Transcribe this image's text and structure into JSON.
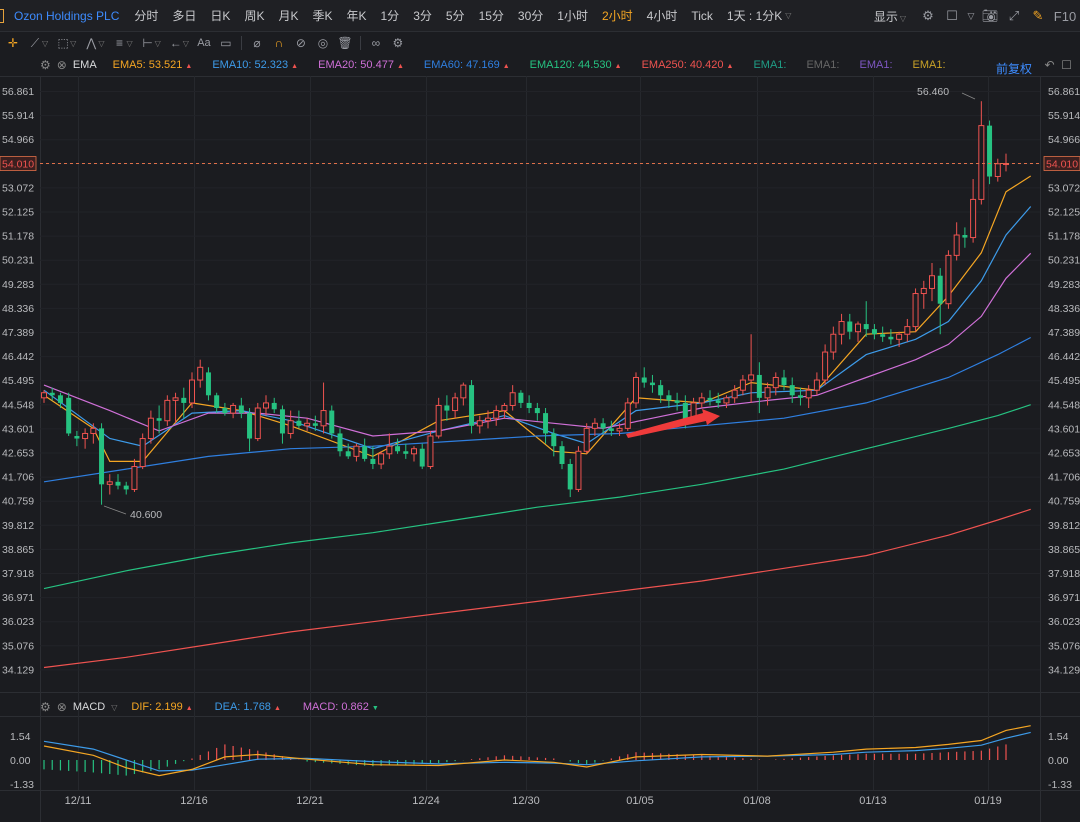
{
  "topbar": {
    "symbol": "Ozon Holdings PLC",
    "periods": [
      "分时",
      "多日",
      "日K",
      "周K",
      "月K",
      "季K",
      "年K",
      "1分",
      "3分",
      "5分",
      "15分",
      "30分",
      "1小时",
      "2小时",
      "4小时",
      "Tick",
      "1天 : 1分K"
    ],
    "active_period": "2小时",
    "show_label": "显示",
    "f10_label": "F10"
  },
  "main_legend": {
    "indicator": "EMA",
    "items": [
      {
        "label": "EMA5: 53.521",
        "color": "#f5a623",
        "dir": "up"
      },
      {
        "label": "EMA10: 52.323",
        "color": "#3d9be9",
        "dir": "up"
      },
      {
        "label": "EMA20: 50.477",
        "color": "#d070d8",
        "dir": "up"
      },
      {
        "label": "EMA60: 47.169",
        "color": "#2f7fe0",
        "dir": "up"
      },
      {
        "label": "EMA120: 44.530",
        "color": "#26c281",
        "dir": "up"
      },
      {
        "label": "EMA250: 40.420",
        "color": "#ef5350",
        "dir": "up"
      },
      {
        "label": "EMA1:",
        "color": "#1f9e86",
        "dir": ""
      },
      {
        "label": "EMA1:",
        "color": "#666666",
        "dir": ""
      },
      {
        "label": "EMA1:",
        "color": "#7e57c2",
        "dir": ""
      },
      {
        "label": "EMA1:",
        "color": "#c9a227",
        "dir": ""
      }
    ],
    "adjust_label": "前复权"
  },
  "macd_legend": {
    "indicator": "MACD",
    "items": [
      {
        "label": "DIF: 2.199",
        "color": "#f5a623",
        "dir": "up"
      },
      {
        "label": "DEA: 1.768",
        "color": "#3d9be9",
        "dir": "up"
      },
      {
        "label": "MACD: 0.862",
        "color": "#d070d8",
        "dir": "down"
      }
    ]
  },
  "chart_data": {
    "type": "candlestick",
    "price_axis_ticks": [
      "56.861",
      "55.914",
      "54.966",
      "54.019",
      "53.072",
      "52.125",
      "51.178",
      "50.231",
      "49.283",
      "48.336",
      "47.389",
      "46.442",
      "45.495",
      "44.548",
      "43.601",
      "42.653",
      "41.706",
      "40.759",
      "39.812",
      "38.865",
      "37.918",
      "36.971",
      "36.023",
      "35.076",
      "34.129"
    ],
    "current_price": "54.010",
    "high_label": "56.460",
    "low_label": "40.600",
    "macd_axis_ticks": [
      "1.54",
      "0.00",
      "-1.33"
    ],
    "x_tick_labels": [
      "12/11",
      "12/16",
      "12/21",
      "12/24",
      "12/30",
      "01/05",
      "01/08",
      "01/13",
      "01/19"
    ],
    "candles": [
      [
        44.8,
        45.1,
        44.6,
        45.0
      ],
      [
        45.0,
        45.2,
        44.7,
        44.9
      ],
      [
        44.9,
        45.0,
        44.4,
        44.6
      ],
      [
        44.8,
        45.0,
        43.3,
        43.4
      ],
      [
        43.3,
        43.5,
        42.9,
        43.2
      ],
      [
        43.2,
        43.6,
        42.8,
        43.4
      ],
      [
        43.4,
        43.8,
        43.0,
        43.6
      ],
      [
        43.6,
        43.8,
        40.6,
        41.4
      ],
      [
        41.4,
        41.8,
        41.0,
        41.5
      ],
      [
        41.5,
        41.8,
        41.2,
        41.35
      ],
      [
        41.35,
        41.5,
        41.0,
        41.2
      ],
      [
        41.2,
        42.4,
        41.1,
        42.1
      ],
      [
        42.1,
        43.4,
        42.0,
        43.2
      ],
      [
        43.2,
        44.3,
        43.0,
        44.0
      ],
      [
        44.0,
        44.5,
        43.4,
        43.9
      ],
      [
        43.9,
        44.9,
        43.7,
        44.7
      ],
      [
        44.7,
        45.0,
        43.8,
        44.8
      ],
      [
        44.8,
        45.2,
        44.0,
        44.6
      ],
      [
        44.6,
        45.8,
        44.4,
        45.5
      ],
      [
        45.5,
        46.3,
        45.2,
        46.0
      ],
      [
        45.8,
        46.0,
        44.7,
        44.9
      ],
      [
        44.9,
        45.0,
        44.2,
        44.4
      ],
      [
        44.4,
        44.6,
        44.1,
        44.2
      ],
      [
        44.2,
        44.6,
        44.0,
        44.5
      ],
      [
        44.5,
        44.8,
        44.0,
        44.2
      ],
      [
        44.2,
        44.4,
        42.7,
        43.2
      ],
      [
        43.2,
        44.6,
        43.1,
        44.4
      ],
      [
        44.4,
        44.9,
        44.1,
        44.6
      ],
      [
        44.6,
        44.8,
        44.2,
        44.35
      ],
      [
        44.35,
        44.5,
        43.0,
        43.4
      ],
      [
        43.4,
        44.3,
        43.2,
        43.9
      ],
      [
        43.9,
        44.3,
        43.6,
        43.7
      ],
      [
        43.7,
        44.0,
        43.5,
        43.8
      ],
      [
        43.8,
        44.1,
        43.5,
        43.7
      ],
      [
        43.7,
        45.4,
        43.4,
        44.3
      ],
      [
        44.3,
        44.5,
        43.2,
        43.4
      ],
      [
        43.4,
        43.6,
        42.5,
        42.7
      ],
      [
        42.7,
        43.0,
        42.4,
        42.5
      ],
      [
        42.5,
        43.0,
        42.3,
        42.9
      ],
      [
        42.9,
        43.2,
        42.3,
        42.4
      ],
      [
        42.4,
        42.9,
        42.0,
        42.2
      ],
      [
        42.2,
        42.7,
        42.0,
        42.6
      ],
      [
        42.6,
        43.4,
        42.4,
        42.9
      ],
      [
        42.9,
        43.2,
        42.6,
        42.7
      ],
      [
        42.7,
        43.0,
        42.4,
        42.6
      ],
      [
        42.6,
        42.9,
        42.3,
        42.8
      ],
      [
        42.8,
        43.0,
        42.0,
        42.1
      ],
      [
        42.1,
        43.5,
        42.0,
        43.3
      ],
      [
        43.3,
        44.8,
        43.2,
        44.5
      ],
      [
        44.5,
        44.9,
        43.9,
        44.3
      ],
      [
        44.3,
        45.0,
        44.0,
        44.8
      ],
      [
        44.8,
        45.4,
        44.5,
        45.3
      ],
      [
        45.3,
        45.5,
        43.4,
        43.7
      ],
      [
        43.7,
        44.1,
        43.4,
        43.9
      ],
      [
        43.9,
        44.3,
        43.6,
        44.0
      ],
      [
        44.0,
        44.5,
        43.7,
        44.3
      ],
      [
        44.3,
        44.6,
        44.0,
        44.5
      ],
      [
        44.5,
        45.3,
        44.3,
        45.0
      ],
      [
        45.0,
        45.1,
        44.4,
        44.6
      ],
      [
        44.6,
        44.9,
        44.2,
        44.4
      ],
      [
        44.4,
        44.6,
        43.9,
        44.2
      ],
      [
        44.2,
        44.4,
        43.0,
        43.4
      ],
      [
        43.4,
        43.6,
        42.5,
        42.9
      ],
      [
        42.9,
        43.1,
        42.0,
        42.2
      ],
      [
        42.2,
        42.4,
        40.9,
        41.2
      ],
      [
        41.2,
        42.9,
        41.1,
        42.7
      ],
      [
        42.7,
        43.8,
        42.6,
        43.6
      ],
      [
        43.6,
        44.0,
        43.3,
        43.8
      ],
      [
        43.8,
        44.0,
        43.4,
        43.6
      ],
      [
        43.6,
        43.9,
        43.3,
        43.5
      ],
      [
        43.5,
        43.8,
        43.3,
        43.6
      ],
      [
        43.6,
        44.8,
        43.5,
        44.6
      ],
      [
        44.6,
        45.8,
        44.4,
        45.6
      ],
      [
        45.6,
        46.0,
        45.2,
        45.4
      ],
      [
        45.4,
        45.7,
        45.0,
        45.3
      ],
      [
        45.3,
        45.5,
        44.6,
        44.9
      ],
      [
        44.9,
        45.1,
        44.4,
        44.7
      ],
      [
        44.7,
        45.0,
        44.3,
        44.6
      ],
      [
        44.6,
        44.9,
        43.6,
        43.9
      ],
      [
        43.9,
        44.8,
        43.8,
        44.6
      ],
      [
        44.6,
        45.0,
        44.4,
        44.8
      ],
      [
        44.8,
        45.1,
        44.5,
        44.7
      ],
      [
        44.7,
        45.0,
        44.4,
        44.6
      ],
      [
        44.6,
        44.9,
        44.4,
        44.8
      ],
      [
        44.8,
        45.3,
        44.6,
        45.1
      ],
      [
        45.1,
        45.7,
        44.9,
        45.5
      ],
      [
        45.5,
        47.3,
        44.6,
        45.7
      ],
      [
        45.7,
        46.2,
        44.2,
        44.8
      ],
      [
        44.8,
        45.4,
        44.5,
        45.2
      ],
      [
        45.2,
        45.8,
        44.9,
        45.6
      ],
      [
        45.6,
        45.9,
        45.1,
        45.3
      ],
      [
        45.3,
        45.6,
        44.6,
        44.9
      ],
      [
        44.9,
        45.2,
        44.5,
        44.8
      ],
      [
        44.8,
        45.3,
        44.4,
        45.1
      ],
      [
        45.1,
        45.8,
        44.9,
        45.5
      ],
      [
        45.5,
        46.9,
        45.3,
        46.6
      ],
      [
        46.6,
        47.6,
        46.3,
        47.3
      ],
      [
        47.3,
        48.1,
        46.9,
        47.8
      ],
      [
        47.8,
        48.1,
        47.1,
        47.4
      ],
      [
        47.4,
        47.8,
        47.0,
        47.7
      ],
      [
        47.7,
        48.6,
        47.2,
        47.5
      ],
      [
        47.5,
        47.7,
        47.1,
        47.3
      ],
      [
        47.3,
        47.6,
        47.0,
        47.2
      ],
      [
        47.2,
        47.5,
        46.9,
        47.1
      ],
      [
        47.1,
        47.4,
        46.8,
        47.3
      ],
      [
        47.3,
        47.9,
        47.0,
        47.6
      ],
      [
        47.6,
        49.1,
        47.4,
        48.9
      ],
      [
        48.9,
        49.4,
        48.3,
        49.1
      ],
      [
        49.1,
        50.1,
        48.6,
        49.6
      ],
      [
        49.6,
        49.9,
        47.3,
        48.5
      ],
      [
        48.5,
        50.6,
        48.3,
        50.4
      ],
      [
        50.4,
        51.7,
        50.2,
        51.2
      ],
      [
        51.2,
        51.5,
        50.7,
        51.1
      ],
      [
        51.1,
        53.4,
        50.9,
        52.6
      ],
      [
        52.6,
        56.46,
        52.4,
        55.5
      ],
      [
        55.5,
        55.7,
        53.2,
        53.5
      ],
      [
        53.5,
        54.2,
        53.3,
        54.0
      ],
      [
        54.0,
        54.4,
        53.7,
        54.01
      ]
    ],
    "series": [
      {
        "name": "EMA5",
        "color": "#f5a623",
        "x": [
          0,
          6,
          8,
          12,
          18,
          24,
          30,
          40,
          48,
          56,
          62,
          66,
          72,
          80,
          86,
          94,
          100,
          106,
          110,
          114,
          117,
          120
        ],
        "values": [
          44.9,
          43.6,
          42.3,
          42.3,
          44.6,
          44.3,
          43.7,
          42.5,
          43.9,
          44.3,
          42.7,
          42.6,
          44.8,
          44.6,
          45.4,
          45.1,
          47.3,
          47.4,
          48.8,
          50.5,
          52.9,
          53.52
        ]
      },
      {
        "name": "EMA10",
        "color": "#3d9be9",
        "x": [
          0,
          8,
          12,
          18,
          24,
          30,
          40,
          48,
          56,
          62,
          66,
          72,
          80,
          86,
          94,
          100,
          106,
          110,
          114,
          117,
          120
        ],
        "values": [
          45.1,
          43.2,
          42.9,
          44.2,
          44.3,
          43.9,
          42.8,
          43.5,
          44.1,
          43.4,
          43.0,
          44.3,
          44.6,
          45.0,
          45.1,
          46.5,
          47.1,
          47.8,
          49.4,
          51.2,
          52.32
        ]
      },
      {
        "name": "EMA20",
        "color": "#d070d8",
        "x": [
          0,
          8,
          14,
          20,
          26,
          32,
          40,
          48,
          56,
          62,
          68,
          74,
          80,
          88,
          94,
          100,
          106,
          110,
          114,
          117,
          120
        ],
        "values": [
          45.3,
          44.3,
          43.5,
          44.2,
          44.2,
          44.0,
          43.3,
          43.5,
          44.0,
          43.8,
          43.6,
          44.0,
          44.4,
          44.7,
          44.9,
          45.6,
          46.3,
          46.9,
          48.0,
          49.5,
          50.48
        ]
      },
      {
        "name": "EMA60",
        "color": "#2f7fe0",
        "x": [
          0,
          10,
          20,
          30,
          40,
          50,
          60,
          70,
          80,
          90,
          100,
          110,
          116,
          120
        ],
        "values": [
          41.5,
          42.0,
          42.5,
          42.8,
          42.9,
          43.1,
          43.3,
          43.4,
          43.7,
          44.0,
          44.6,
          45.6,
          46.5,
          47.17
        ]
      },
      {
        "name": "EMA120",
        "color": "#26c281",
        "x": [
          0,
          10,
          20,
          30,
          40,
          50,
          60,
          70,
          80,
          90,
          100,
          110,
          116,
          120
        ],
        "values": [
          37.3,
          38.0,
          38.6,
          39.1,
          39.5,
          40.0,
          40.5,
          40.9,
          41.4,
          42.0,
          42.8,
          43.6,
          44.1,
          44.53
        ]
      },
      {
        "name": "EMA250",
        "color": "#ef5350",
        "x": [
          0,
          10,
          20,
          30,
          40,
          50,
          60,
          70,
          80,
          90,
          100,
          110,
          116,
          120
        ],
        "values": [
          34.2,
          34.6,
          35.1,
          35.6,
          36.0,
          36.4,
          36.8,
          37.2,
          37.6,
          38.1,
          38.6,
          39.4,
          40.0,
          40.42
        ]
      }
    ],
    "macd": {
      "dif_color": "#f5a623",
      "dea_color": "#3d9be9",
      "x": [
        0,
        6,
        10,
        14,
        18,
        22,
        26,
        32,
        40,
        48,
        56,
        62,
        66,
        72,
        80,
        88,
        96,
        100,
        106,
        110,
        114,
        117,
        120
      ],
      "dif": [
        0.9,
        0.3,
        -0.5,
        -1.0,
        -0.6,
        0.2,
        0.35,
        0.05,
        -0.3,
        -0.35,
        0.0,
        -0.15,
        -0.45,
        0.2,
        0.35,
        0.25,
        0.5,
        0.7,
        0.8,
        1.0,
        1.25,
        1.9,
        2.2
      ],
      "dea": [
        1.2,
        0.7,
        0.0,
        -0.7,
        -0.65,
        -0.3,
        0.05,
        0.1,
        -0.1,
        -0.25,
        -0.15,
        -0.2,
        -0.3,
        -0.05,
        0.2,
        0.25,
        0.35,
        0.5,
        0.6,
        0.75,
        0.95,
        1.4,
        1.77
      ]
    }
  }
}
